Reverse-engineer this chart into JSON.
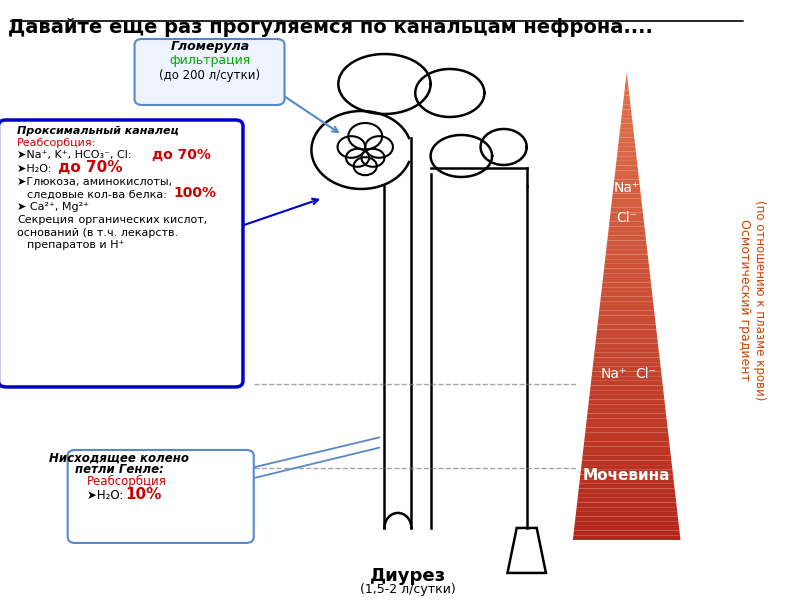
{
  "title": "Давайте еще раз прогуляемся по канальцам нефрона....",
  "title_fontsize": 14,
  "bg_color": "#ffffff",
  "diurez_label": "Диурез",
  "diurez_sub": "(1,5-2 л/сутки)"
}
